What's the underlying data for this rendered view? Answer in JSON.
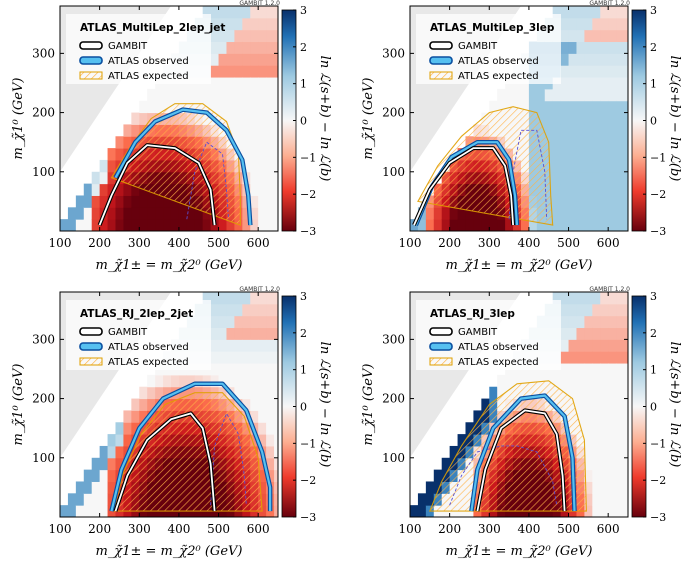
{
  "colors": {
    "gambit_contour": "#000000",
    "observed_outer": "#0b4fa0",
    "observed_inner": "#56c0f0",
    "expected_fill": "#ffc04a",
    "expected_line": "#e0a000",
    "expected_dash": "#5a4fcf",
    "forbidden_region": "#e8e8e8"
  },
  "chart_data": [
    {
      "type": "heatmap",
      "title": "ATLAS_MultiLep_2lep_jet",
      "tag": "GAMBIT 1.2.0",
      "xlabel": "m_χ̃1± = m_χ̃2⁰ (GeV)",
      "ylabel": "m_χ̃1⁰ (GeV)",
      "colorbar_label": "ln ℒ(s+b) − ln ℒ(b)",
      "xlim": [
        100,
        650
      ],
      "ylim": [
        0,
        380
      ],
      "zlim": [
        -3,
        3
      ],
      "xticks": [
        "100",
        "200",
        "300",
        "400",
        "500",
        "600"
      ],
      "yticks": [
        "100",
        "200",
        "300"
      ],
      "cbticks": [
        "3",
        "2",
        "1",
        "0",
        "−1",
        "−2",
        "−3"
      ],
      "legend": [
        "GAMBIT",
        "ATLAS observed",
        "ATLAS expected"
      ],
      "legend_loc": "top-left",
      "model": {
        "x0": 190,
        "cx": 360,
        "rx": 180,
        "ry": 155,
        "ridge_y": 190
      },
      "gambit_contour": [
        [
          200,
          10
        ],
        [
          230,
          60
        ],
        [
          270,
          115
        ],
        [
          320,
          145
        ],
        [
          390,
          140
        ],
        [
          450,
          115
        ],
        [
          480,
          70
        ],
        [
          490,
          10
        ]
      ],
      "observed_contour": [
        [
          240,
          90
        ],
        [
          290,
          150
        ],
        [
          340,
          185
        ],
        [
          410,
          205
        ],
        [
          470,
          200
        ],
        [
          520,
          170
        ],
        [
          560,
          120
        ],
        [
          575,
          60
        ],
        [
          580,
          10
        ]
      ],
      "expected_contour": [
        [
          230,
          90
        ],
        [
          280,
          145
        ],
        [
          330,
          190
        ],
        [
          390,
          215
        ],
        [
          460,
          215
        ],
        [
          520,
          185
        ],
        [
          550,
          130
        ],
        [
          555,
          60
        ],
        [
          555,
          10
        ]
      ],
      "expected_dashed": [
        [
          420,
          20
        ],
        [
          440,
          100
        ],
        [
          470,
          150
        ],
        [
          510,
          130
        ],
        [
          520,
          70
        ],
        [
          525,
          20
        ]
      ]
    },
    {
      "type": "heatmap",
      "title": "ATLAS_MultiLep_3lep",
      "tag": "GAMBIT 1.2.0",
      "xlabel": "m_χ̃1± = m_χ̃2⁰ (GeV)",
      "ylabel": "m_χ̃1⁰ (GeV)",
      "colorbar_label": "ln ℒ(s+b) − ln ℒ(b)",
      "xlim": [
        100,
        650
      ],
      "ylim": [
        0,
        380
      ],
      "zlim": [
        -3,
        3
      ],
      "xticks": [
        "100",
        "200",
        "300",
        "400",
        "500",
        "600"
      ],
      "yticks": [
        "100",
        "200",
        "300"
      ],
      "cbticks": [
        "3",
        "2",
        "1",
        "0",
        "−1",
        "−2",
        "−3"
      ],
      "legend": [
        "GAMBIT",
        "ATLAS observed",
        "ATLAS expected"
      ],
      "legend_loc": "top-left",
      "model": {
        "x0": 105,
        "cx": 270,
        "rx": 110,
        "ry": 130,
        "ridge_y": 160,
        "blue_from": 400
      },
      "gambit_contour": [
        [
          110,
          10
        ],
        [
          150,
          70
        ],
        [
          200,
          115
        ],
        [
          260,
          140
        ],
        [
          310,
          140
        ],
        [
          340,
          110
        ],
        [
          355,
          60
        ],
        [
          360,
          10
        ]
      ],
      "observed_contour": [
        [
          115,
          10
        ],
        [
          155,
          75
        ],
        [
          205,
          125
        ],
        [
          270,
          150
        ],
        [
          320,
          150
        ],
        [
          350,
          120
        ],
        [
          365,
          60
        ],
        [
          370,
          10
        ]
      ],
      "expected_contour": [
        [
          120,
          50
        ],
        [
          170,
          110
        ],
        [
          230,
          160
        ],
        [
          300,
          200
        ],
        [
          360,
          210
        ],
        [
          420,
          200
        ],
        [
          450,
          150
        ],
        [
          455,
          60
        ],
        [
          460,
          10
        ]
      ],
      "expected_dashed": [
        [
          350,
          20
        ],
        [
          360,
          100
        ],
        [
          380,
          170
        ],
        [
          420,
          170
        ],
        [
          440,
          100
        ],
        [
          445,
          20
        ]
      ]
    },
    {
      "type": "heatmap",
      "title": "ATLAS_RJ_2lep_2jet",
      "tag": "GAMBIT 1.2.0",
      "xlabel": "m_χ̃1± = m_χ̃2⁰ (GeV)",
      "ylabel": "m_χ̃1⁰ (GeV)",
      "colorbar_label": "ln ℒ(s+b) − ln ℒ(b)",
      "xlim": [
        100,
        650
      ],
      "ylim": [
        0,
        380
      ],
      "zlim": [
        -3,
        3
      ],
      "xticks": [
        "100",
        "200",
        "300",
        "400",
        "500",
        "600"
      ],
      "yticks": [
        "100",
        "200",
        "300"
      ],
      "cbticks": [
        "3",
        "2",
        "1",
        "0",
        "−1",
        "−2",
        "−3"
      ],
      "legend": [
        "GAMBIT",
        "ATLAS observed",
        "ATLAS expected"
      ],
      "legend_loc": "top-left",
      "model": {
        "x0": 225,
        "cx": 420,
        "rx": 190,
        "ry": 180,
        "ridge_y": 230
      },
      "gambit_contour": [
        [
          240,
          10
        ],
        [
          270,
          70
        ],
        [
          320,
          130
        ],
        [
          380,
          165
        ],
        [
          430,
          175
        ],
        [
          460,
          150
        ],
        [
          480,
          90
        ],
        [
          490,
          10
        ]
      ],
      "observed_contour": [
        [
          230,
          10
        ],
        [
          255,
          80
        ],
        [
          300,
          150
        ],
        [
          360,
          200
        ],
        [
          440,
          225
        ],
        [
          510,
          225
        ],
        [
          570,
          180
        ],
        [
          610,
          110
        ],
        [
          630,
          50
        ],
        [
          630,
          10
        ]
      ],
      "expected_contour": [
        [
          235,
          10
        ],
        [
          260,
          75
        ],
        [
          305,
          140
        ],
        [
          365,
          190
        ],
        [
          440,
          210
        ],
        [
          510,
          210
        ],
        [
          565,
          170
        ],
        [
          600,
          100
        ],
        [
          610,
          10
        ]
      ],
      "expected_dashed": [
        [
          480,
          20
        ],
        [
          490,
          120
        ],
        [
          520,
          175
        ],
        [
          550,
          140
        ],
        [
          565,
          70
        ],
        [
          570,
          20
        ]
      ]
    },
    {
      "type": "heatmap",
      "title": "ATLAS_RJ_3lep",
      "tag": "GAMBIT 1.2.0",
      "xlabel": "m_χ̃1± = m_χ̃2⁰ (GeV)",
      "ylabel": "m_χ̃1⁰ (GeV)",
      "colorbar_label": "ln ℒ(s+b) − ln ℒ(b)",
      "xlim": [
        100,
        650
      ],
      "ylim": [
        0,
        380
      ],
      "zlim": [
        -3,
        3
      ],
      "xticks": [
        "100",
        "200",
        "300",
        "400",
        "500",
        "600"
      ],
      "yticks": [
        "100",
        "200",
        "300"
      ],
      "cbticks": [
        "3",
        "2",
        "1",
        "0",
        "−1",
        "−2",
        "−3"
      ],
      "legend": [
        "GAMBIT",
        "ATLAS observed",
        "ATLAS expected"
      ],
      "legend_loc": "top-left",
      "model": {
        "x0": 270,
        "cx": 400,
        "rx": 120,
        "ry": 150,
        "ridge_y": 200,
        "blue_band": true
      },
      "gambit_contour": [
        [
          270,
          10
        ],
        [
          290,
          80
        ],
        [
          330,
          150
        ],
        [
          390,
          180
        ],
        [
          440,
          175
        ],
        [
          470,
          140
        ],
        [
          485,
          70
        ],
        [
          490,
          10
        ]
      ],
      "observed_contour": [
        [
          255,
          10
        ],
        [
          270,
          80
        ],
        [
          310,
          150
        ],
        [
          380,
          200
        ],
        [
          440,
          205
        ],
        [
          490,
          170
        ],
        [
          510,
          100
        ],
        [
          515,
          10
        ]
      ],
      "expected_contour": [
        [
          150,
          10
        ],
        [
          180,
          60
        ],
        [
          230,
          120
        ],
        [
          300,
          190
        ],
        [
          370,
          225
        ],
        [
          450,
          230
        ],
        [
          510,
          200
        ],
        [
          540,
          130
        ],
        [
          545,
          10
        ]
      ],
      "expected_dashed": [
        [
          200,
          20
        ],
        [
          230,
          70
        ],
        [
          270,
          110
        ],
        [
          330,
          120
        ],
        [
          370,
          120
        ],
        [
          420,
          110
        ],
        [
          460,
          60
        ],
        [
          470,
          20
        ]
      ]
    }
  ]
}
